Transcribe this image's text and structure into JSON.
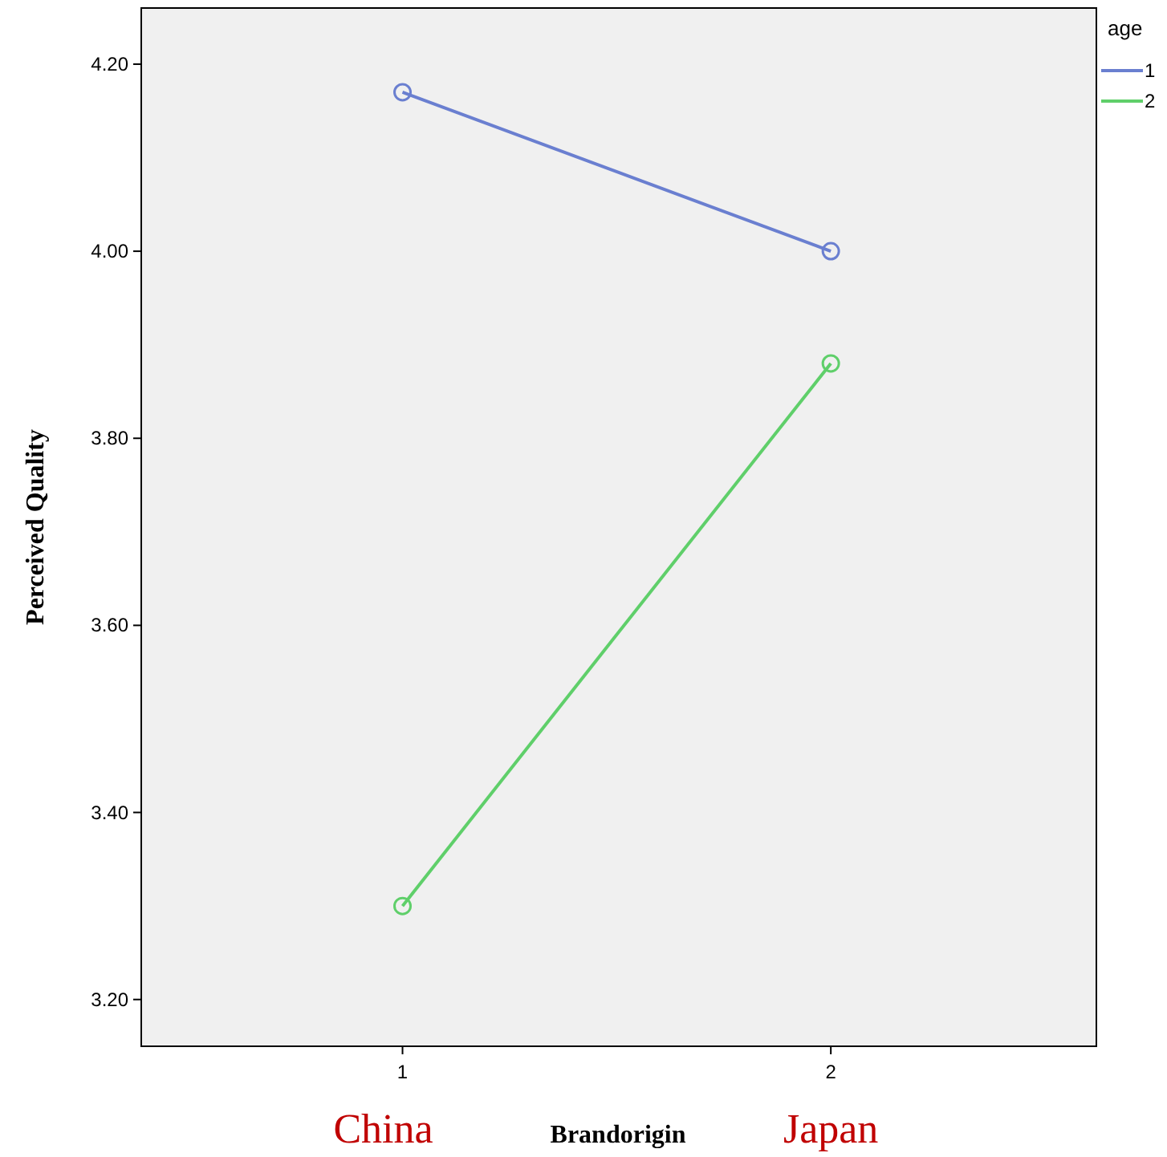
{
  "chart_data": {
    "type": "line",
    "xlabel": "Brandorigin",
    "ylabel": "Perceived Quality",
    "legend_title": "age",
    "x": [
      1,
      2
    ],
    "series": [
      {
        "name": "1",
        "color": "#6a7fd0",
        "values": [
          4.17,
          4.0
        ]
      },
      {
        "name": "2",
        "color": "#5fcf6a",
        "values": [
          3.3,
          3.88
        ]
      }
    ],
    "xlim": [
      0.39,
      2.62
    ],
    "xticks": [
      1,
      2
    ],
    "ylim": [
      3.15,
      4.26
    ],
    "yticks": [
      {
        "value": 3.2,
        "label": "3.20"
      },
      {
        "value": 3.4,
        "label": "3.40"
      },
      {
        "value": 3.6,
        "label": "3.60"
      },
      {
        "value": 3.8,
        "label": "3.80"
      },
      {
        "value": 4.0,
        "label": "4.00"
      },
      {
        "value": 4.2,
        "label": "4.20"
      }
    ],
    "marker": "circle",
    "line_style": "solid",
    "grid": false,
    "legend": "top right",
    "annotations": [
      "China",
      "Japan"
    ]
  }
}
